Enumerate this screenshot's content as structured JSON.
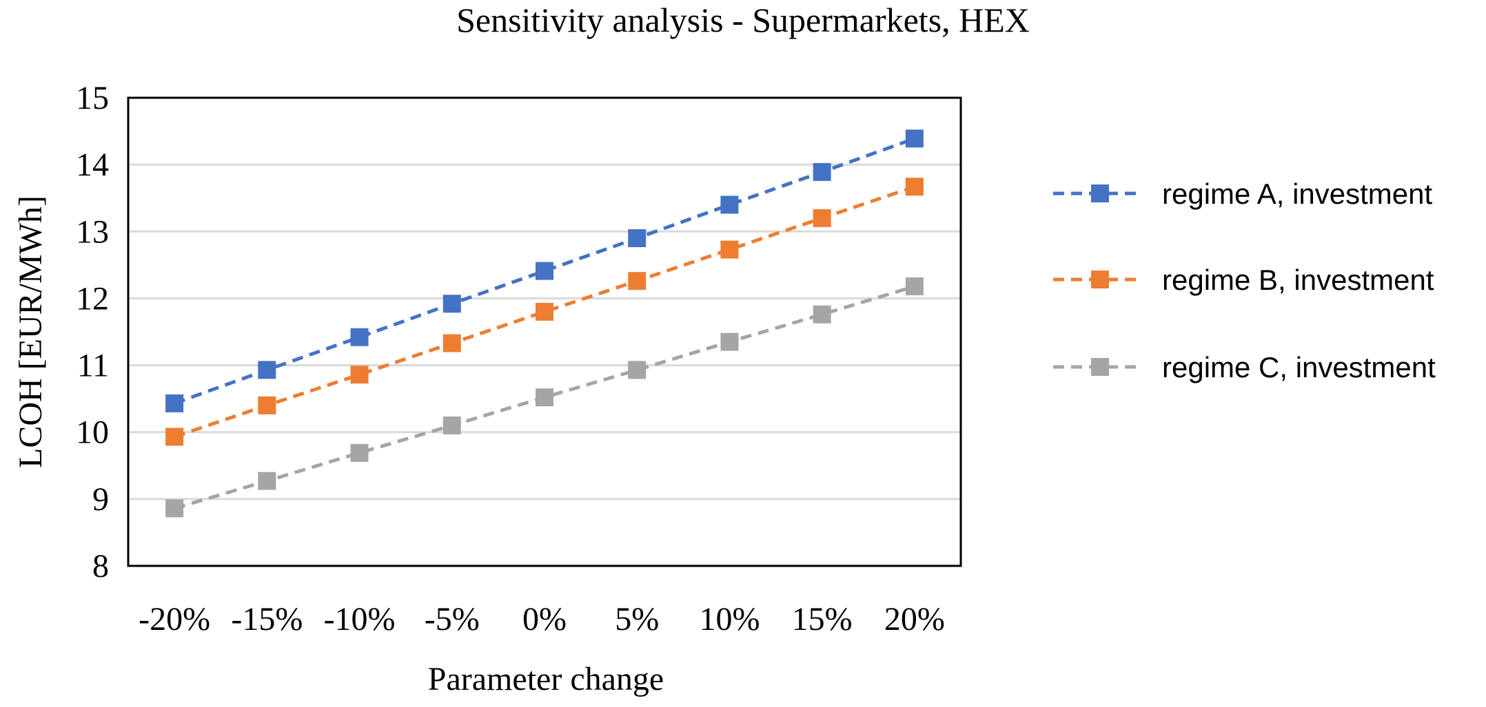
{
  "chart_data": {
    "type": "line",
    "title": "Sensitivity analysis - Supermarkets, HEX",
    "xlabel": "Parameter change",
    "ylabel": "LCOH [EUR/MWh]",
    "categories": [
      "-20%",
      "-15%",
      "-10%",
      "-5%",
      "0%",
      "5%",
      "10%",
      "15%",
      "20%"
    ],
    "ylim": [
      8,
      15
    ],
    "yticks": [
      8,
      9,
      10,
      11,
      12,
      13,
      14,
      15
    ],
    "grid": true,
    "legend_position": "right",
    "line_style": "dashed",
    "marker": "square",
    "series": [
      {
        "name": "regime A, investment",
        "color": "#4472C4",
        "values": [
          10.43,
          10.93,
          11.42,
          11.92,
          12.41,
          12.9,
          13.4,
          13.89,
          14.39
        ]
      },
      {
        "name": "regime B, investment",
        "color": "#ED7D31",
        "values": [
          9.93,
          10.4,
          10.86,
          11.33,
          11.8,
          12.26,
          12.73,
          13.2,
          13.67
        ]
      },
      {
        "name": "regime C, investment",
        "color": "#A5A5A5",
        "values": [
          8.86,
          9.27,
          9.69,
          10.1,
          10.52,
          10.93,
          11.35,
          11.76,
          12.18
        ]
      }
    ]
  }
}
